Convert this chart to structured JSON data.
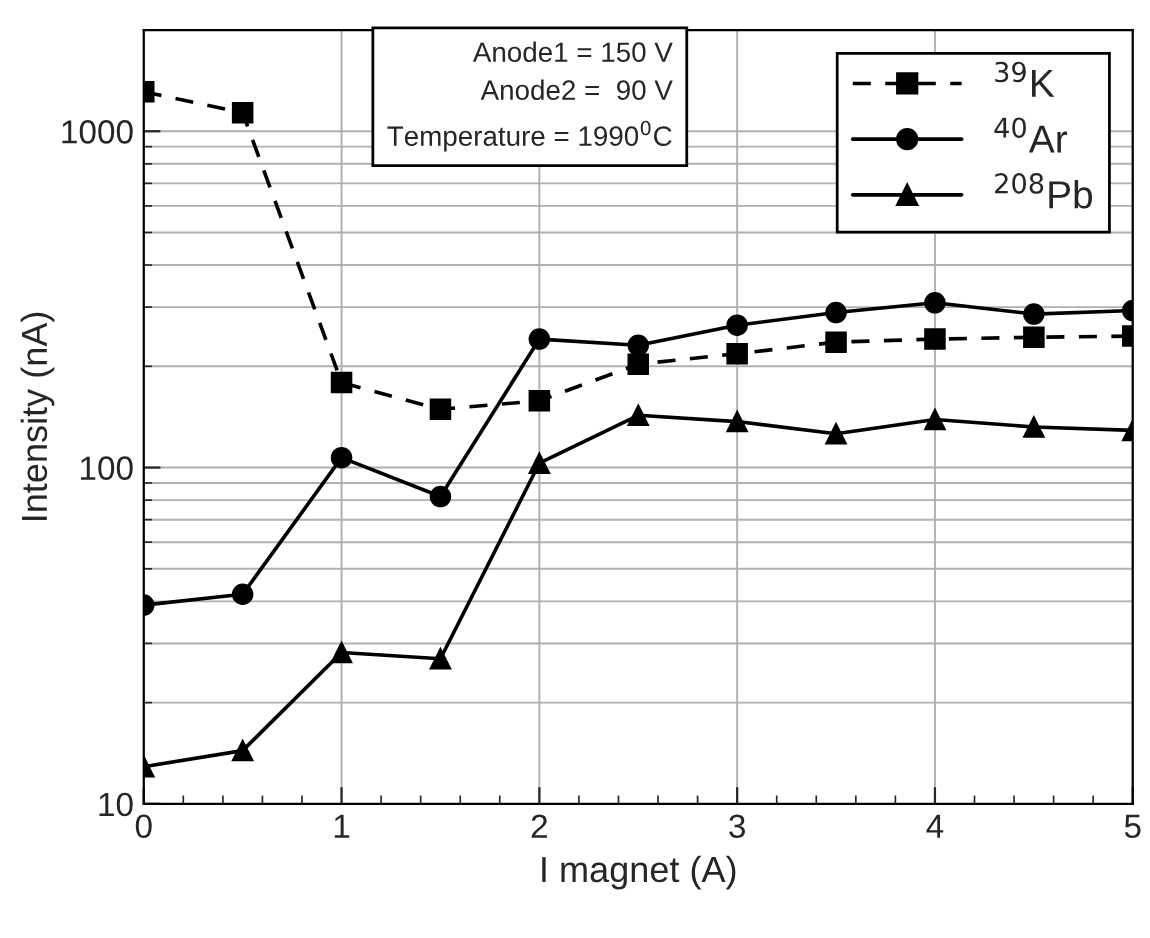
{
  "chart_data": {
    "type": "line",
    "xlabel": "I magnet (A)",
    "ylabel": "Intensity (nA)",
    "x": [
      0,
      0.5,
      1,
      1.5,
      2,
      2.5,
      3,
      3.5,
      4,
      4.5,
      5
    ],
    "series": [
      {
        "name": "$^{39}$K",
        "color": "#000000",
        "marker": "square",
        "line_style": "dashed",
        "values": [
          1310,
          1135,
          179,
          149,
          158,
          203,
          218,
          236,
          241,
          244,
          246
        ]
      },
      {
        "name": "$^{40}$Ar",
        "color": "#000000",
        "marker": "circle",
        "line_style": "solid",
        "values": [
          39,
          42,
          107,
          82,
          241,
          231,
          265,
          289,
          309,
          286,
          293
        ]
      },
      {
        "name": "$^{208}$Pb",
        "color": "#000000",
        "marker": "triangle",
        "line_style": "solid",
        "values": [
          12.9,
          14.4,
          28.2,
          27,
          103,
          143,
          137,
          126,
          139,
          132,
          129
        ]
      }
    ],
    "log": "y",
    "xlim": [
      0,
      5
    ],
    "xticks": [
      0,
      1,
      2,
      3,
      4,
      5
    ],
    "ylim": [
      10,
      2000
    ],
    "yticks": [
      10,
      100,
      1000
    ],
    "grid": true,
    "legend": "top right",
    "annotations": [
      "Anode1 = 150 V\nAnode2 =  90 V\nTemperature = 1990$^{0}$C"
    ]
  }
}
